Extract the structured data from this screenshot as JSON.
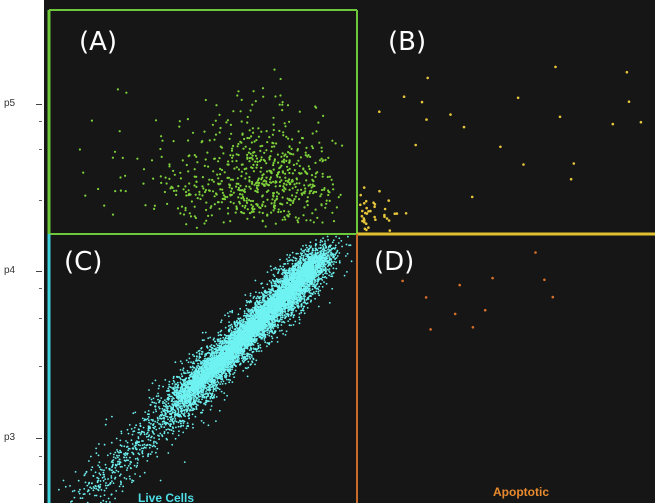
{
  "chart_data": {
    "type": "scatter",
    "title": "",
    "xlabel": "",
    "ylabel": "",
    "y_scale": "log",
    "y_ticks": [
      "p5",
      "p4",
      "p3"
    ],
    "quadrant_labels": [
      "(A)",
      "(B)",
      "(C)",
      "(D)"
    ],
    "gate_labels": [
      {
        "text": "Live Cells",
        "color": "#4fdfe8"
      },
      {
        "text": "Apoptotic",
        "color": "#e88a2e"
      }
    ],
    "colors": {
      "background": "#161616",
      "live_cells": "#6ff2f2",
      "upper_left": "#7ed23a",
      "upper_right": "#e6c63a",
      "lower_right": "#d8702a",
      "gate_green": "#6cc83a",
      "gate_yellow": "#e0c030",
      "gate_cyan": "#3fd2dc",
      "gate_orange": "#c86a2a"
    },
    "populations": [
      {
        "name": "",
        "quadrant": "C",
        "approx_events": 9000,
        "color": "#6ff2f2"
      },
      {
        "name": "",
        "quadrant": "A",
        "approx_events": 700,
        "color": "#7ed23a"
      },
      {
        "name": "",
        "quadrant": "B",
        "approx_events": 60,
        "color": "#e6c63a"
      },
      {
        "name": "",
        "quadrant": "D",
        "approx_events": 12,
        "color": "#d8702a"
      }
    ]
  }
}
